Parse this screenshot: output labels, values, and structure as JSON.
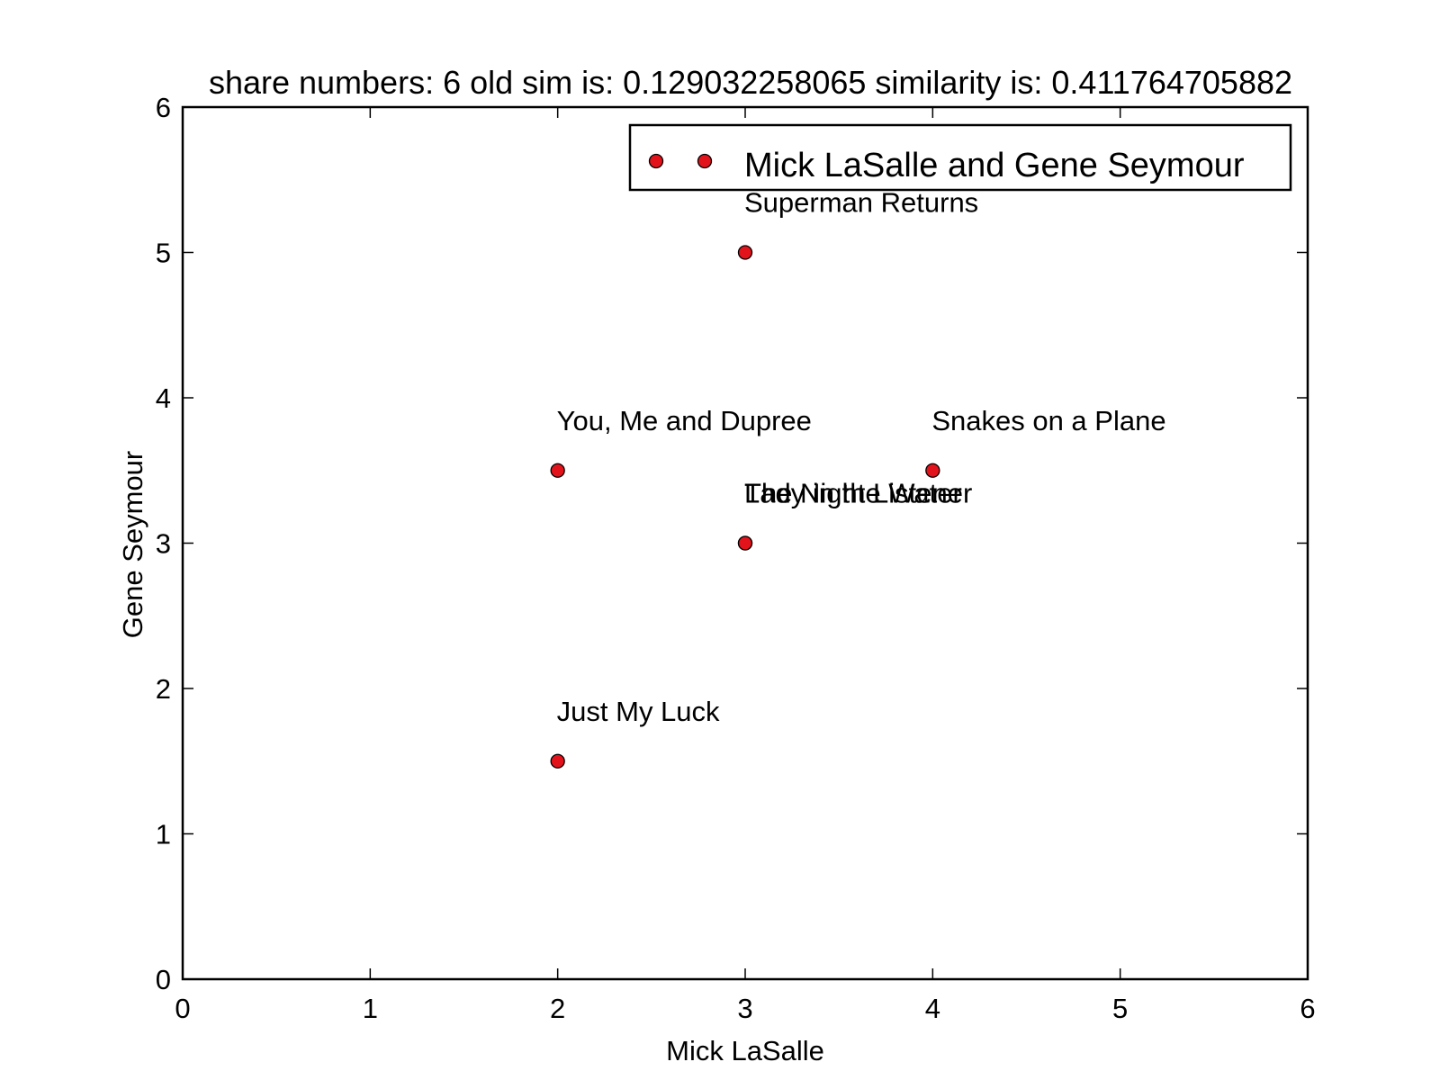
{
  "chart_data": {
    "type": "scatter",
    "title": "share numbers: 6 old sim is: 0.129032258065 similarity is: 0.411764705882",
    "xlabel": "Mick LaSalle",
    "ylabel": "Gene Seymour",
    "xlim": [
      0,
      6
    ],
    "ylim": [
      0,
      6
    ],
    "xticks": [
      "0",
      "1",
      "2",
      "3",
      "4",
      "5",
      "6"
    ],
    "yticks": [
      "0",
      "1",
      "2",
      "3",
      "4",
      "5",
      "6"
    ],
    "grid": false,
    "legend_position": "top-right",
    "marker_color": "#e3131b",
    "series": [
      {
        "name": "Mick LaSalle and Gene Seymour",
        "points": [
          {
            "x": 3,
            "y": 5,
            "label": "Superman Returns"
          },
          {
            "x": 2,
            "y": 3.5,
            "label": "You, Me and Dupree"
          },
          {
            "x": 4,
            "y": 3.5,
            "label": "Snakes on a Plane"
          },
          {
            "x": 3,
            "y": 3,
            "label": "Lady in the Water"
          },
          {
            "x": 3,
            "y": 3,
            "label": "The Night Listener"
          },
          {
            "x": 2,
            "y": 1.5,
            "label": "Just My Luck"
          }
        ]
      }
    ]
  }
}
